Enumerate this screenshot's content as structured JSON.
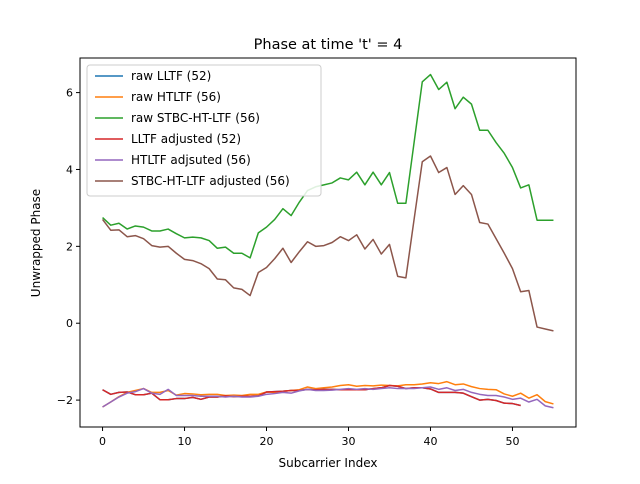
{
  "chart_data": {
    "type": "line",
    "title": "Phase at time 't' = 4",
    "xlabel": "Subcarrier Index",
    "ylabel": "Unwrapped Phase",
    "xlim": [
      -2.75,
      57.75
    ],
    "ylim": [
      -2.7,
      6.9
    ],
    "xticks": [
      0,
      10,
      20,
      30,
      40,
      50
    ],
    "yticks": [
      -2,
      0,
      2,
      4,
      6
    ],
    "grid": false,
    "legend": "top-left",
    "series": [
      {
        "name": "raw LLTF (52)",
        "color": "#1f77b4",
        "x": [
          0,
          1,
          2,
          3,
          4,
          5,
          6,
          7,
          8,
          9,
          10,
          11,
          12,
          13,
          14,
          15,
          16,
          17,
          18,
          19,
          20,
          21,
          22,
          23,
          24,
          25,
          26,
          27,
          28,
          29,
          30,
          31,
          32,
          33,
          34,
          35,
          36,
          37,
          38,
          39,
          40,
          41,
          42,
          43,
          44,
          45,
          46,
          47,
          48,
          49,
          50,
          51
        ],
        "y": [
          -1.73,
          -1.85,
          -1.8,
          -1.79,
          -1.86,
          -1.86,
          -1.82,
          -1.99,
          -1.99,
          -1.96,
          -1.96,
          -1.93,
          -1.98,
          -1.92,
          -1.92,
          -1.89,
          -1.91,
          -1.9,
          -1.9,
          -1.89,
          -1.79,
          -1.78,
          -1.77,
          -1.75,
          -1.75,
          -1.72,
          -1.73,
          -1.72,
          -1.72,
          -1.73,
          -1.73,
          -1.73,
          -1.73,
          -1.7,
          -1.68,
          -1.62,
          -1.64,
          -1.7,
          -1.68,
          -1.68,
          -1.71,
          -1.8,
          -1.8,
          -1.8,
          -1.82,
          -1.91,
          -2.0,
          -1.98,
          -2.01,
          -2.08,
          -2.09,
          -2.14
        ]
      },
      {
        "name": "raw HTLTF (56)",
        "color": "#ff7f0e",
        "x": [
          0,
          1,
          2,
          3,
          4,
          5,
          6,
          7,
          8,
          9,
          10,
          11,
          12,
          13,
          14,
          15,
          16,
          17,
          18,
          19,
          20,
          21,
          22,
          23,
          24,
          25,
          26,
          27,
          28,
          29,
          30,
          31,
          32,
          33,
          34,
          35,
          36,
          37,
          38,
          39,
          40,
          41,
          42,
          43,
          44,
          45,
          46,
          47,
          48,
          49,
          50,
          51,
          52,
          53,
          54,
          55
        ],
        "y": [
          -2.18,
          -2.05,
          -1.91,
          -1.8,
          -1.75,
          -1.7,
          -1.8,
          -1.8,
          -1.75,
          -1.87,
          -1.83,
          -1.84,
          -1.86,
          -1.85,
          -1.85,
          -1.88,
          -1.87,
          -1.88,
          -1.85,
          -1.85,
          -1.79,
          -1.8,
          -1.77,
          -1.75,
          -1.73,
          -1.66,
          -1.7,
          -1.68,
          -1.66,
          -1.62,
          -1.6,
          -1.64,
          -1.62,
          -1.63,
          -1.61,
          -1.62,
          -1.63,
          -1.6,
          -1.6,
          -1.58,
          -1.55,
          -1.57,
          -1.52,
          -1.6,
          -1.58,
          -1.65,
          -1.7,
          -1.72,
          -1.73,
          -1.84,
          -1.9,
          -1.82,
          -1.95,
          -1.86,
          -2.04,
          -2.1
        ]
      },
      {
        "name": "raw STBC-HT-LTF (56)",
        "color": "#2ca02c",
        "x": [
          0,
          1,
          2,
          3,
          4,
          5,
          6,
          7,
          8,
          9,
          10,
          11,
          12,
          13,
          14,
          15,
          16,
          17,
          18,
          19,
          20,
          21,
          22,
          23,
          24,
          25,
          26,
          27,
          28,
          29,
          30,
          31,
          32,
          33,
          34,
          35,
          36,
          37,
          38,
          39,
          40,
          41,
          42,
          43,
          44,
          45,
          46,
          47,
          48,
          49,
          50,
          51,
          52,
          53,
          54,
          55
        ],
        "y": [
          2.75,
          2.55,
          2.6,
          2.45,
          2.53,
          2.5,
          2.4,
          2.4,
          2.45,
          2.33,
          2.22,
          2.24,
          2.22,
          2.15,
          1.95,
          1.98,
          1.82,
          1.82,
          1.7,
          2.35,
          2.5,
          2.7,
          2.98,
          2.8,
          3.15,
          3.45,
          3.55,
          3.6,
          3.65,
          3.78,
          3.73,
          3.93,
          3.6,
          3.93,
          3.6,
          3.92,
          3.12,
          3.12,
          4.7,
          6.28,
          6.47,
          6.08,
          6.27,
          5.58,
          5.88,
          5.7,
          5.02,
          5.02,
          4.7,
          4.42,
          4.05,
          3.52,
          3.6,
          2.68,
          2.68,
          2.68
        ]
      },
      {
        "name": "LLTF adjusted (52)",
        "color": "#d62728",
        "x": [
          0,
          1,
          2,
          3,
          4,
          5,
          6,
          7,
          8,
          9,
          10,
          11,
          12,
          13,
          14,
          15,
          16,
          17,
          18,
          19,
          20,
          21,
          22,
          23,
          24,
          25,
          26,
          27,
          28,
          29,
          30,
          31,
          32,
          33,
          34,
          35,
          36,
          37,
          38,
          39,
          40,
          41,
          42,
          43,
          44,
          45,
          46,
          47,
          48,
          49,
          50,
          51
        ],
        "y": [
          -1.73,
          -1.85,
          -1.8,
          -1.79,
          -1.86,
          -1.86,
          -1.82,
          -1.99,
          -1.99,
          -1.96,
          -1.96,
          -1.93,
          -1.98,
          -1.92,
          -1.92,
          -1.89,
          -1.91,
          -1.9,
          -1.9,
          -1.89,
          -1.79,
          -1.78,
          -1.77,
          -1.75,
          -1.75,
          -1.72,
          -1.73,
          -1.72,
          -1.72,
          -1.73,
          -1.73,
          -1.73,
          -1.73,
          -1.7,
          -1.68,
          -1.62,
          -1.64,
          -1.7,
          -1.68,
          -1.68,
          -1.71,
          -1.8,
          -1.8,
          -1.8,
          -1.82,
          -1.91,
          -2.0,
          -1.98,
          -2.01,
          -2.08,
          -2.09,
          -2.14
        ]
      },
      {
        "name": "HTLTF adjsuted (56)",
        "color": "#9467bd",
        "x": [
          0,
          1,
          2,
          3,
          4,
          5,
          6,
          7,
          8,
          9,
          10,
          11,
          12,
          13,
          14,
          15,
          16,
          17,
          18,
          19,
          20,
          21,
          22,
          23,
          24,
          25,
          26,
          27,
          28,
          29,
          30,
          31,
          32,
          33,
          34,
          35,
          36,
          37,
          38,
          39,
          40,
          41,
          42,
          43,
          44,
          45,
          46,
          47,
          48,
          49,
          50,
          51,
          52,
          53,
          54,
          55
        ],
        "y": [
          -2.18,
          -2.05,
          -1.92,
          -1.82,
          -1.78,
          -1.7,
          -1.82,
          -1.85,
          -1.72,
          -1.88,
          -1.88,
          -1.88,
          -1.9,
          -1.9,
          -1.9,
          -1.92,
          -1.9,
          -1.92,
          -1.92,
          -1.9,
          -1.85,
          -1.83,
          -1.8,
          -1.82,
          -1.76,
          -1.72,
          -1.75,
          -1.75,
          -1.74,
          -1.72,
          -1.7,
          -1.72,
          -1.7,
          -1.72,
          -1.7,
          -1.68,
          -1.7,
          -1.7,
          -1.7,
          -1.68,
          -1.66,
          -1.72,
          -1.68,
          -1.75,
          -1.72,
          -1.8,
          -1.85,
          -1.88,
          -1.88,
          -1.92,
          -1.98,
          -1.95,
          -2.05,
          -1.98,
          -2.15,
          -2.2
        ]
      },
      {
        "name": "STBC-HT-LTF adjusted (56)",
        "color": "#8c564b",
        "x": [
          0,
          1,
          2,
          3,
          4,
          5,
          6,
          7,
          8,
          9,
          10,
          11,
          12,
          13,
          14,
          15,
          16,
          17,
          18,
          19,
          20,
          21,
          22,
          23,
          24,
          25,
          26,
          27,
          28,
          29,
          30,
          31,
          32,
          33,
          34,
          35,
          36,
          37,
          38,
          39,
          40,
          41,
          42,
          43,
          44,
          45,
          46,
          47,
          48,
          49,
          50,
          51,
          52,
          53,
          54,
          55
        ],
        "y": [
          2.7,
          2.42,
          2.43,
          2.25,
          2.28,
          2.2,
          2.02,
          1.98,
          2.0,
          1.82,
          1.66,
          1.63,
          1.55,
          1.42,
          1.15,
          1.13,
          0.92,
          0.88,
          0.72,
          1.32,
          1.45,
          1.68,
          1.95,
          1.58,
          1.86,
          2.12,
          2.0,
          2.02,
          2.1,
          2.25,
          2.15,
          2.3,
          1.93,
          2.18,
          1.8,
          2.05,
          1.22,
          1.18,
          2.7,
          4.2,
          4.35,
          3.92,
          4.05,
          3.35,
          3.58,
          3.35,
          2.62,
          2.58,
          2.2,
          1.82,
          1.42,
          0.82,
          0.85,
          -0.1,
          -0.15,
          -0.2
        ]
      }
    ]
  }
}
